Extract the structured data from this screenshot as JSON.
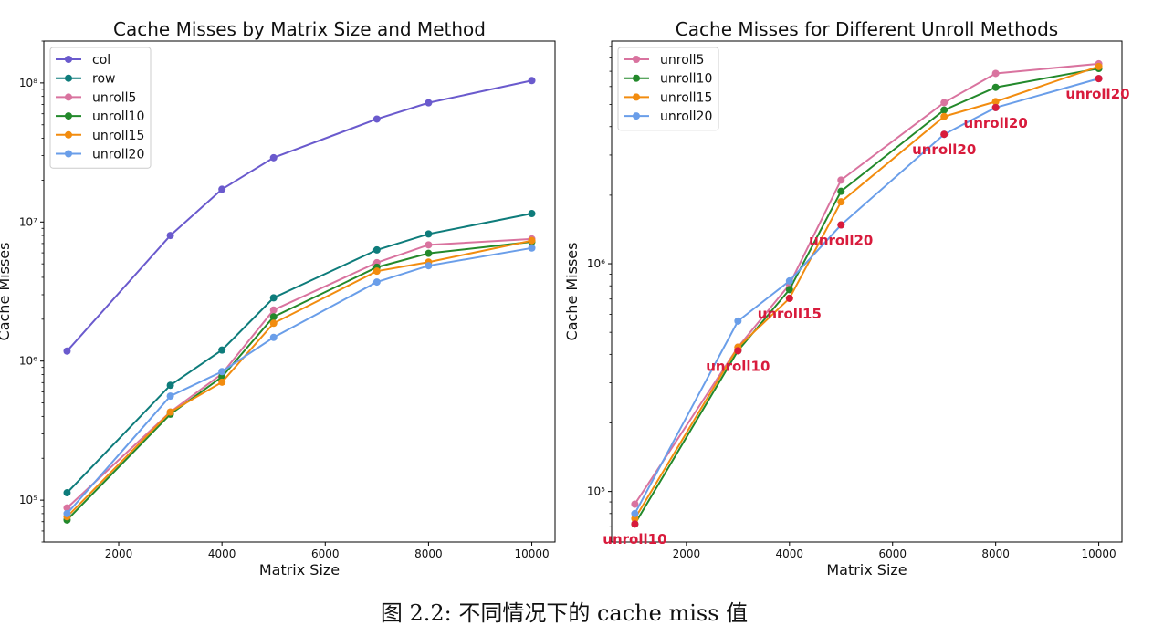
{
  "caption": "图 2.2: 不同情况下的 cache miss 值",
  "chart_data": [
    {
      "type": "line",
      "title": "Cache Misses by Matrix Size and Method",
      "xlabel": "Matrix Size",
      "ylabel": "Cache Misses",
      "yscale": "log",
      "xlim": [
        550,
        10450
      ],
      "ylim": [
        50000,
        200000000
      ],
      "xticks": [
        2000,
        4000,
        6000,
        8000,
        10000
      ],
      "xtick_labels": [
        "2000",
        "4000",
        "6000",
        "8000",
        "10000"
      ],
      "yticks": [
        100000,
        1000000,
        10000000,
        100000000
      ],
      "ytick_labels": [
        "10⁵",
        "10⁶",
        "10⁷",
        "10⁸"
      ],
      "legend_position": "top-left",
      "grid": false,
      "x": [
        1000,
        3000,
        4000,
        5000,
        7000,
        8000,
        10000
      ],
      "series": [
        {
          "name": "col",
          "color": "#6a5acd",
          "values": [
            1180000,
            8000000,
            17200000,
            29000000,
            55000000,
            72000000,
            104000000
          ]
        },
        {
          "name": "row",
          "color": "#0e7c7b",
          "values": [
            113000,
            670000,
            1200000,
            2850000,
            6300000,
            8200000,
            11500000
          ]
        },
        {
          "name": "unroll5",
          "color": "#d9739f",
          "values": [
            88000,
            430000,
            810000,
            2330000,
            5100000,
            6850000,
            7550000
          ]
        },
        {
          "name": "unroll10",
          "color": "#23892b",
          "values": [
            72000,
            415000,
            770000,
            2080000,
            4730000,
            5950000,
            7200000
          ]
        },
        {
          "name": "unroll15",
          "color": "#f28c0f",
          "values": [
            76000,
            430000,
            705000,
            1870000,
            4430000,
            5150000,
            7350000
          ]
        },
        {
          "name": "unroll20",
          "color": "#6a9ee9",
          "values": [
            80000,
            560000,
            840000,
            1480000,
            3700000,
            4850000,
            6500000
          ]
        }
      ]
    },
    {
      "type": "line",
      "title": "Cache Misses for Different Unroll Methods",
      "xlabel": "Matrix Size",
      "ylabel": "Cache Misses",
      "yscale": "log",
      "xlim": [
        550,
        10450
      ],
      "ylim": [
        60000,
        9500000
      ],
      "xticks": [
        2000,
        4000,
        6000,
        8000,
        10000
      ],
      "xtick_labels": [
        "2000",
        "4000",
        "6000",
        "8000",
        "10000"
      ],
      "yticks": [
        100000,
        1000000
      ],
      "ytick_labels": [
        "10⁵",
        "10⁶"
      ],
      "legend_position": "top-left",
      "grid": false,
      "x": [
        1000,
        3000,
        4000,
        5000,
        7000,
        8000,
        10000
      ],
      "series": [
        {
          "name": "unroll5",
          "color": "#d9739f",
          "values": [
            88000,
            430000,
            810000,
            2330000,
            5100000,
            6850000,
            7550000
          ]
        },
        {
          "name": "unroll10",
          "color": "#23892b",
          "values": [
            72000,
            415000,
            770000,
            2080000,
            4730000,
            5950000,
            7200000
          ]
        },
        {
          "name": "unroll15",
          "color": "#f28c0f",
          "values": [
            76000,
            430000,
            705000,
            1870000,
            4430000,
            5150000,
            7350000
          ]
        },
        {
          "name": "unroll20",
          "color": "#6a9ee9",
          "values": [
            80000,
            560000,
            840000,
            1480000,
            3700000,
            4850000,
            6500000
          ]
        }
      ],
      "highlight_color": "#d81b3c",
      "annotations": [
        {
          "x": 1000,
          "y": 72000,
          "text": "unroll10"
        },
        {
          "x": 3000,
          "y": 415000,
          "text": "unroll10"
        },
        {
          "x": 4000,
          "y": 705000,
          "text": "unroll15"
        },
        {
          "x": 5000,
          "y": 1480000,
          "text": "unroll20"
        },
        {
          "x": 7000,
          "y": 3700000,
          "text": "unroll20"
        },
        {
          "x": 8000,
          "y": 4850000,
          "text": "unroll20"
        },
        {
          "x": 10000,
          "y": 6500000,
          "text": "unroll20"
        }
      ]
    }
  ]
}
